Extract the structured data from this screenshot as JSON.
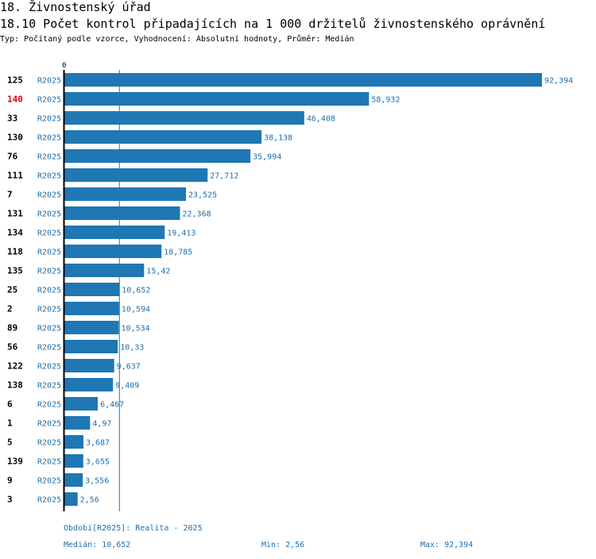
{
  "header": {
    "section": "18. Živnostenský úřad",
    "title": "18.10 Počet kontrol připadajících na 1 000 držitelů živnostenského oprávnění",
    "subtitle": "Typ: Počítaný podle vzorce, Vyhodnocení: Absolutní hodnoty, Průměr: Medián"
  },
  "chart_data": {
    "type": "bar",
    "orientation": "horizontal",
    "title": "18.10 Počet kontrol připadajících na 1 000 držitelů živnostenského oprávnění",
    "axis_zero_label": "0",
    "xlim": [
      0,
      92.394
    ],
    "median": 10.652,
    "categories": [
      "125",
      "140",
      "33",
      "130",
      "76",
      "111",
      "7",
      "131",
      "134",
      "118",
      "135",
      "25",
      "2",
      "89",
      "56",
      "122",
      "138",
      "6",
      "1",
      "5",
      "139",
      "9",
      "3"
    ],
    "series_labels": [
      "R2025",
      "R2025",
      "R2025",
      "R2025",
      "R2025",
      "R2025",
      "R2025",
      "R2025",
      "R2025",
      "R2025",
      "R2025",
      "R2025",
      "R2025",
      "R2025",
      "R2025",
      "R2025",
      "R2025",
      "R2025",
      "R2025",
      "R2025",
      "R2025",
      "R2025",
      "R2025"
    ],
    "values": [
      92.394,
      58.932,
      46.408,
      38.138,
      35.994,
      27.712,
      23.525,
      22.368,
      19.413,
      18.785,
      15.42,
      10.652,
      10.594,
      10.534,
      10.33,
      9.637,
      9.409,
      6.467,
      4.97,
      3.687,
      3.655,
      3.556,
      2.56
    ],
    "value_labels": [
      "92,394",
      "58,932",
      "46,408",
      "38,138",
      "35,994",
      "27,712",
      "23,525",
      "22,368",
      "19,413",
      "18,785",
      "15,42",
      "10,652",
      "10,594",
      "10,534",
      "10,33",
      "9,637",
      "9,409",
      "6,467",
      "4,97",
      "3,687",
      "3,655",
      "3,556",
      "2,56"
    ],
    "highlighted_category": "140",
    "colors": {
      "bar": "#1f77b4",
      "highlight": "#e8000b",
      "label": "#1f6fab",
      "axis": "#000000",
      "median_line": "#1f77b4"
    }
  },
  "footer": {
    "period": "Období[R2025]: Realita - 2025",
    "median": "Medián: 10,652",
    "min": "Min: 2,56",
    "max": "Max: 92,394"
  }
}
